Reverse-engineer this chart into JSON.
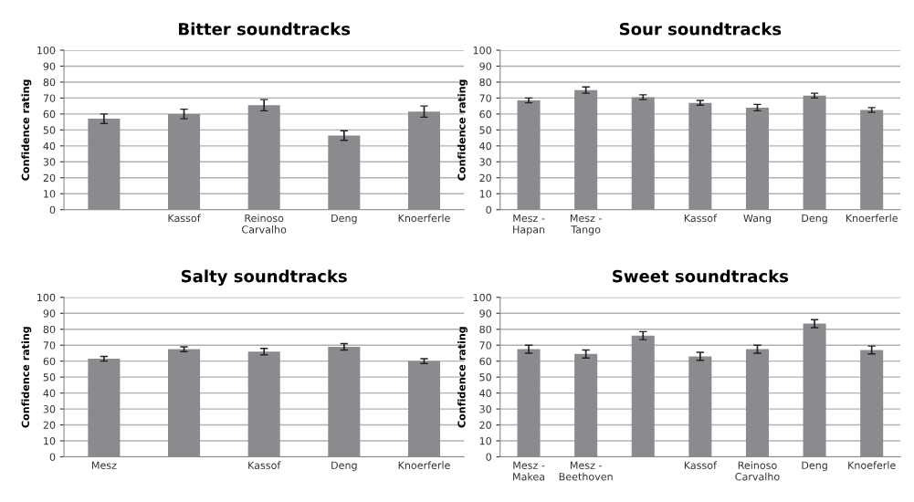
{
  "chart_data": [
    {
      "type": "bar",
      "title": "Bitter soundtracks",
      "ylabel": "Confidence rating",
      "categories": [
        null,
        "Kassof",
        "Reinoso\nCarvalho",
        "Deng",
        "Knoerferle"
      ],
      "values": [
        57,
        60,
        65.5,
        46.5,
        61.5
      ],
      "errors": [
        3,
        3,
        3.5,
        3,
        3.5
      ],
      "color": "#8a8b8f",
      "ylim": [
        0,
        100
      ],
      "yticks": [
        0,
        10,
        20,
        30,
        40,
        50,
        60,
        70,
        80,
        90,
        100
      ],
      "grid": "y"
    },
    {
      "type": "bar",
      "title": "Sour soundtracks",
      "ylabel": "Confidence rating",
      "categories": [
        "Mesz -\nHapan",
        "Mesz -\nTango",
        null,
        "Kassof",
        "Wang",
        "Deng",
        "Knoerferle"
      ],
      "values": [
        68.5,
        75,
        70.5,
        67,
        64,
        71.5,
        62.5
      ],
      "errors": [
        1.5,
        2,
        1.5,
        1.5,
        2,
        1.5,
        1.5
      ],
      "color": "#8a8b8f",
      "ylim": [
        0,
        100
      ],
      "yticks": [
        0,
        10,
        20,
        30,
        40,
        50,
        60,
        70,
        80,
        90,
        100
      ],
      "grid": "y"
    },
    {
      "type": "bar",
      "title": "Salty soundtracks",
      "ylabel": "Confidence rating",
      "categories": [
        "Mesz",
        null,
        "Kassof",
        "Deng",
        "Knoerferle"
      ],
      "values": [
        61.5,
        67.5,
        66,
        69,
        60
      ],
      "errors": [
        1.5,
        1.5,
        2,
        2,
        1.5
      ],
      "color": "#8a8b8f",
      "ylim": [
        0,
        100
      ],
      "yticks": [
        0,
        10,
        20,
        30,
        40,
        50,
        60,
        70,
        80,
        90,
        100
      ],
      "grid": "y"
    },
    {
      "type": "bar",
      "title": "Sweet soundtracks",
      "ylabel": "Confidence rating",
      "categories": [
        "Mesz -\nMakea",
        "Mesz -\nBeethoven",
        null,
        "Kassof",
        "Reinoso\nCarvalho",
        "Deng",
        "Knoeferle"
      ],
      "values": [
        67.5,
        64.5,
        76,
        63,
        67.5,
        83.5,
        67
      ],
      "errors": [
        2.5,
        2.5,
        2.5,
        2.5,
        2.5,
        2.5,
        2.5
      ],
      "color": "#8a8b8f",
      "ylim": [
        0,
        100
      ],
      "yticks": [
        0,
        10,
        20,
        30,
        40,
        50,
        60,
        70,
        80,
        90,
        100
      ],
      "grid": "y"
    }
  ]
}
